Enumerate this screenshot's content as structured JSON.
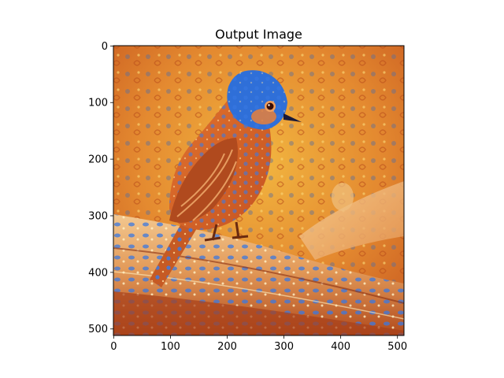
{
  "figure": {
    "title": "Output Image"
  },
  "image": {
    "description_colors": {
      "background_orange": "#e0782a",
      "background_gold": "#f0b23a",
      "bird_blue": "#2f6fd8",
      "bird_orange": "#d8642a",
      "branch_tan": "#e8a86a",
      "branch_dark": "#a8401a"
    }
  },
  "axes": {
    "x": {
      "min": 0,
      "max": 512,
      "ticks": [
        0,
        100,
        200,
        300,
        400,
        500
      ]
    },
    "y": {
      "min": 0,
      "max": 512,
      "inverted": true,
      "ticks": [
        0,
        100,
        200,
        300,
        400,
        500
      ]
    }
  }
}
